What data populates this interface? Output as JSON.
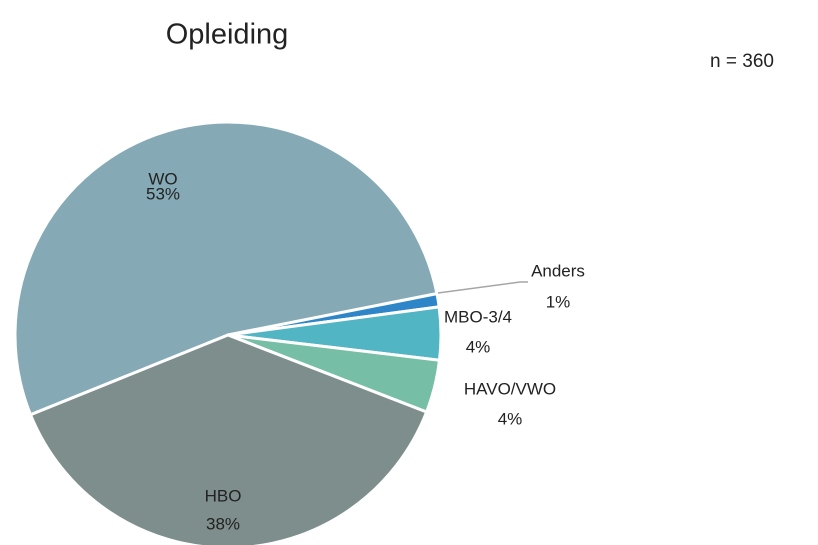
{
  "chart_data": {
    "type": "pie",
    "title": "Opleiding",
    "annotation": "n = 360",
    "categories": [
      "WO",
      "Anders",
      "MBO-3/4",
      "HAVO/VWO",
      "HBO"
    ],
    "values": [
      53,
      1,
      4,
      4,
      38
    ],
    "value_labels": [
      "53%",
      "1%",
      "4%",
      "4%",
      "38%"
    ],
    "colors": [
      "#85aab5",
      "#2e86c8",
      "#52b5c4",
      "#76bfa6",
      "#7e8e8c"
    ]
  }
}
